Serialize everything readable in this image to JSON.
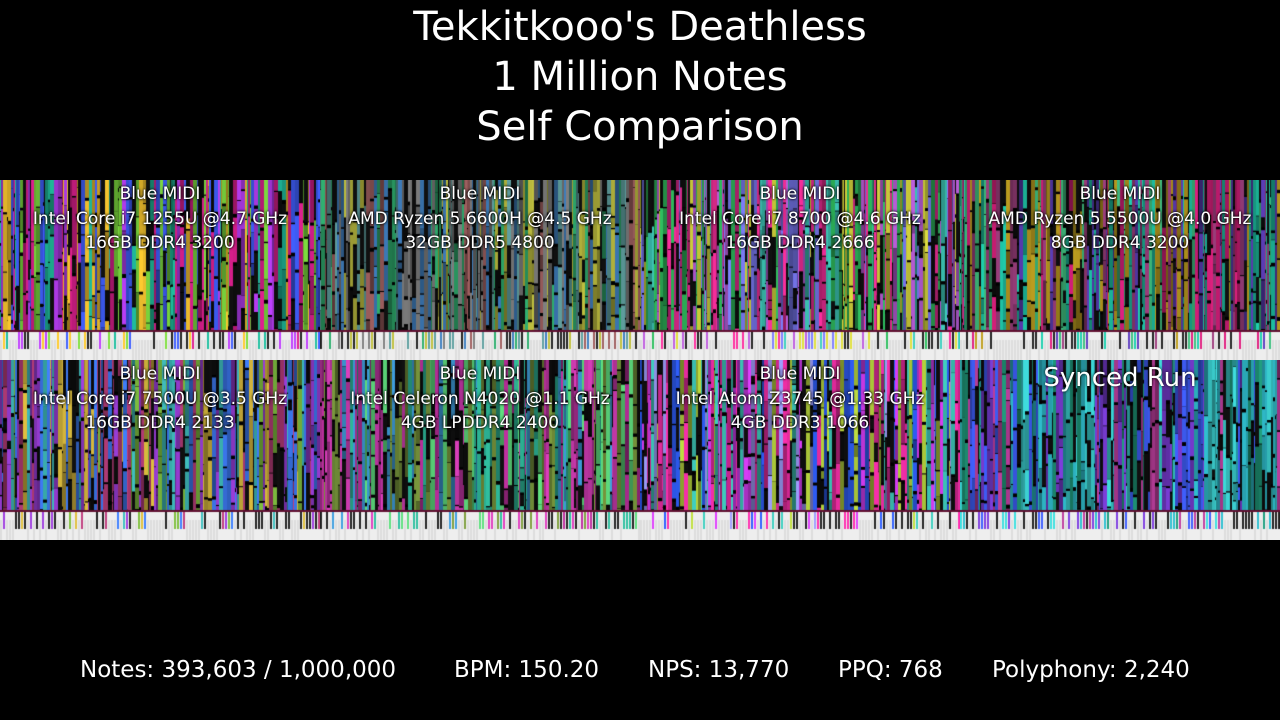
{
  "title": {
    "line1": "Tekkitkooo's Deathless",
    "line2": "1 Million Notes",
    "line3": "Self Comparison"
  },
  "panels": [
    {
      "renderer": "Blue MIDI",
      "cpu": "Intel Core i7 1255U @4.7 GHz",
      "ram": "16GB DDR4 3200",
      "palette": [
        "#e02090",
        "#20c0a0",
        "#80e040",
        "#4060ff",
        "#ffcc30",
        "#c040ff"
      ]
    },
    {
      "renderer": "Blue MIDI",
      "cpu": "AMD Ryzen 5 6600H @4.5 GHz",
      "ram": "32GB DDR5 4800",
      "palette": [
        "#808080",
        "#30b070",
        "#a06060",
        "#4080c0",
        "#c0c040",
        "#60a0a0"
      ]
    },
    {
      "renderer": "Blue MIDI",
      "cpu": "Intel Core i7 8700 @4.6 GHz",
      "ram": "16GB DDR4 2666",
      "palette": [
        "#ff30a0",
        "#40d0c0",
        "#8080ff",
        "#e0e040",
        "#30c060",
        "#c060e0"
      ]
    },
    {
      "renderer": "Blue MIDI",
      "cpu": "AMD Ryzen 5 5500U @4.0 GHz",
      "ram": "8GB DDR4 3200",
      "palette": [
        "#e02080",
        "#20d0b0",
        "#a04080",
        "#40c080",
        "#c0a020",
        "#6040c0"
      ]
    },
    {
      "renderer": "Blue MIDI",
      "cpu": "Intel Core i7 7500U @3.5 GHz",
      "ram": "16GB DDR4 2133",
      "palette": [
        "#40c0c0",
        "#c04080",
        "#80c040",
        "#4080ff",
        "#e0c040",
        "#a040e0"
      ]
    },
    {
      "renderer": "Blue MIDI",
      "cpu": "Intel Celeron N4020 @1.1 GHz",
      "ram": "4GB LPDDR4 2400",
      "palette": [
        "#c030a0",
        "#30c0a0",
        "#80a040",
        "#e040c0",
        "#40a0e0",
        "#60e080"
      ]
    },
    {
      "renderer": "Blue MIDI",
      "cpu": "Intel Atom Z3745 @1.33 GHz",
      "ram": "4GB DDR3 1066",
      "palette": [
        "#ff30b0",
        "#3060ff",
        "#a0a0ff",
        "#40d0c0",
        "#c0e040",
        "#e040ff"
      ]
    },
    {
      "synced_label": "Synced Run",
      "palette": [
        "#30c0d0",
        "#4060ff",
        "#c040a0",
        "#20a080",
        "#8040e0",
        "#40e0e0"
      ]
    }
  ],
  "stats": {
    "notes": "Notes: 393,603 / 1,000,000",
    "bpm": "BPM: 150.20",
    "nps": "NPS: 13,770",
    "ppq": "PPQ: 768",
    "polyphony": "Polyphony: 2,240"
  }
}
